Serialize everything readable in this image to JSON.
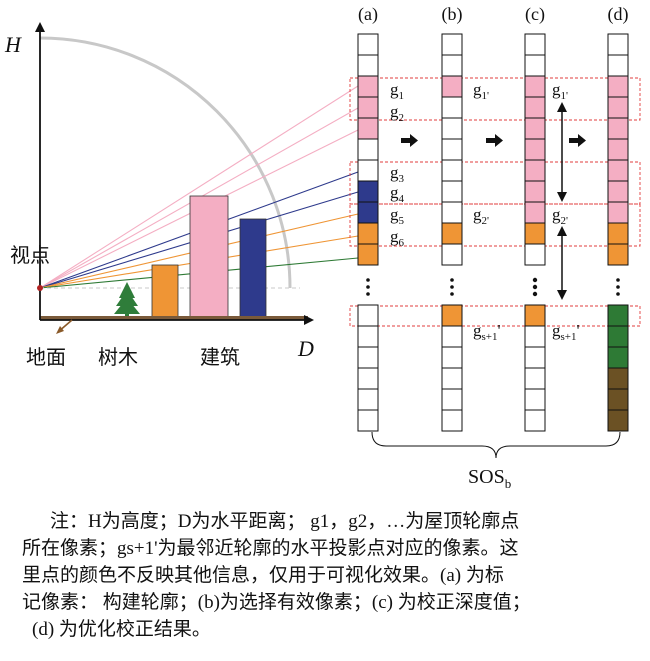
{
  "axes": {
    "h_label": "H",
    "d_label": "D",
    "viewpoint_label": "视点",
    "ground_label": "地面",
    "tree_label": "树木",
    "building_label": "建筑"
  },
  "columns": {
    "a_label": "(a)",
    "b_label": "(b)",
    "c_label": "(c)",
    "d_label": "(d)",
    "group_label": "SOSb",
    "group_label_main": "SOS",
    "group_label_sub": "b"
  },
  "pixel_labels": {
    "g1": "g1",
    "g2": "g2",
    "g3": "g3",
    "g4": "g4",
    "g5": "g5",
    "g6": "g6",
    "g1p_b": "g1'",
    "g2p_b": "g2'",
    "gs1p_b": "gs+1'",
    "g1p_c": "g1'",
    "g2p_c": "g2'",
    "gs1p_c": "gs+1'"
  },
  "caption": {
    "line1": "注：H为高度；D为水平距离； g1，g2，…为屋顶轮廓点",
    "line2": "所在像素；gs+1'为最邻近轮廓的水平投影点对应的像素。这",
    "line3": "里点的颜色不反映其他信息，仅用于可视化效果。(a) 为标",
    "line4": "记像素： 构建轮廓；(b)为选择有效像素；(c) 为校正深度值；",
    "line5": "(d) 为优化校正结果。"
  },
  "colors": {
    "pink": "#f4aec3",
    "blue": "#2e3a8c",
    "orange": "#ef9535",
    "green": "#2e7a35",
    "brown": "#6b5124",
    "tree_green": "#2f7d3a",
    "axis": "#111111",
    "arc": "#c8c8c8",
    "dashed": "#e23c3c"
  }
}
